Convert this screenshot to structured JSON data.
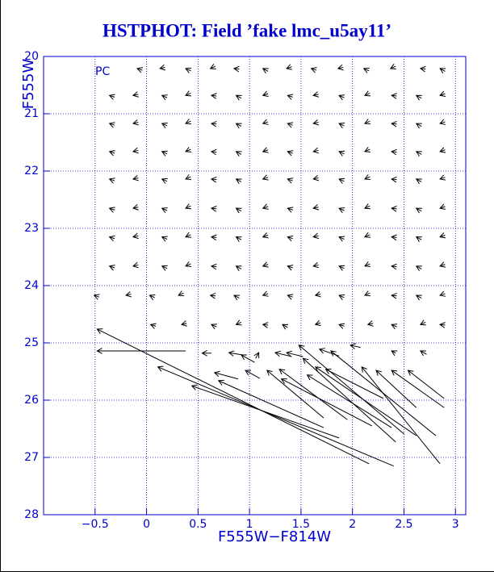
{
  "chart_data": {
    "type": "quiver",
    "title": "HSTPHOT: Field ’fake lmc_u5ay11’",
    "annotation": "PC",
    "x_label": "F555W−F814W",
    "y_label": "F555W",
    "xlim": [
      -1,
      3.1
    ],
    "ylim": [
      28,
      20
    ],
    "xticks": [
      {
        "value": -0.5,
        "label": "−0.5"
      },
      0,
      0.5,
      1,
      1.5,
      2,
      2.5,
      3
    ],
    "yticks": [
      20,
      21,
      22,
      23,
      24,
      25,
      26,
      27,
      28
    ],
    "grid": true,
    "color": "#000000",
    "axis_color": "#0000cc",
    "x": [
      2.16,
      0.38,
      2.4,
      1.87,
      0.63,
      0.89,
      1.72,
      0.93,
      1.05,
      1.1,
      1.06,
      1.72,
      1.41,
      1.95,
      2.19,
      1.52,
      2.5,
      2.42,
      2.38,
      2.62,
      1.87,
      2.81,
      2.85,
      2.62,
      2.89,
      2.89,
      2.72,
      2.42,
      2.08,
      2.3,
      -0.04,
      0.18,
      0.43,
      0.67,
      0.9,
      1.18,
      1.41,
      1.65,
      1.91,
      2.16,
      2.42,
      2.71,
      2.9,
      -0.31,
      -0.08,
      0.2,
      0.43,
      0.68,
      0.92,
      1.18,
      1.42,
      1.67,
      1.92,
      2.17,
      2.43,
      2.67,
      2.9,
      -0.31,
      -0.08,
      0.2,
      0.43,
      0.68,
      0.92,
      1.18,
      1.42,
      1.67,
      1.92,
      2.17,
      2.43,
      2.67,
      2.9,
      -0.31,
      -0.08,
      0.2,
      0.43,
      0.68,
      0.92,
      1.18,
      1.42,
      1.67,
      1.92,
      2.17,
      2.43,
      2.67,
      2.9,
      -0.31,
      -0.08,
      0.2,
      0.43,
      0.68,
      0.92,
      1.18,
      1.42,
      1.67,
      1.92,
      2.17,
      2.43,
      2.67,
      2.9,
      -0.31,
      -0.08,
      0.2,
      0.43,
      0.68,
      0.92,
      1.18,
      1.42,
      1.67,
      1.92,
      2.17,
      2.43,
      2.67,
      2.9,
      -0.31,
      -0.08,
      0.2,
      0.43,
      0.68,
      0.92,
      1.18,
      1.42,
      1.67,
      1.92,
      2.17,
      2.43,
      2.67,
      2.9,
      -0.31,
      -0.08,
      0.2,
      0.43,
      0.68,
      0.92,
      1.18,
      1.42,
      1.67,
      1.92,
      2.17,
      2.43,
      2.67,
      2.9,
      -0.46,
      -0.15,
      0.08,
      0.36,
      0.67,
      0.9,
      1.18,
      1.42,
      1.69,
      1.92,
      2.17,
      2.43,
      2.67,
      2.9,
      0.09,
      0.39,
      0.68,
      0.92,
      1.18,
      1.37,
      1.69,
      1.92,
      2.2,
      2.43,
      2.71,
      2.9
    ],
    "y": [
      27.11,
      25.14,
      27.15,
      26.66,
      25.18,
      25.63,
      26.48,
      25.21,
      25.34,
      25.62,
      25.27,
      26.31,
      25.24,
      26.34,
      26.45,
      25.24,
      26.59,
      26.73,
      26.48,
      26.62,
      25.23,
      26.62,
      27.11,
      26.13,
      26.13,
      25.97,
      25.2,
      25.18,
      25.08,
      25.97,
      20.24,
      20.19,
      20.25,
      20.17,
      20.22,
      20.26,
      20.18,
      20.24,
      20.19,
      20.25,
      20.17,
      20.22,
      20.26,
      20.71,
      20.66,
      20.72,
      20.64,
      20.69,
      20.73,
      20.65,
      20.71,
      20.66,
      20.72,
      20.64,
      20.69,
      20.73,
      20.65,
      21.2,
      21.15,
      21.21,
      21.13,
      21.18,
      21.22,
      21.14,
      21.2,
      21.15,
      21.21,
      21.13,
      21.18,
      21.22,
      21.14,
      21.69,
      21.64,
      21.7,
      21.62,
      21.67,
      21.71,
      21.63,
      21.69,
      21.64,
      21.7,
      21.62,
      21.67,
      21.71,
      21.63,
      22.17,
      22.12,
      22.18,
      22.1,
      22.15,
      22.19,
      22.11,
      22.17,
      22.12,
      22.18,
      22.1,
      22.15,
      22.19,
      22.11,
      22.68,
      22.63,
      22.69,
      22.61,
      22.66,
      22.7,
      22.62,
      22.68,
      22.63,
      22.69,
      22.61,
      22.66,
      22.7,
      22.62,
      23.18,
      23.13,
      23.19,
      23.11,
      23.16,
      23.2,
      23.12,
      23.18,
      23.13,
      23.19,
      23.11,
      23.16,
      23.2,
      23.12,
      23.69,
      23.64,
      23.7,
      23.62,
      23.67,
      23.71,
      23.63,
      23.69,
      23.64,
      23.7,
      23.62,
      23.67,
      23.71,
      23.63,
      24.2,
      24.15,
      24.21,
      24.13,
      24.18,
      24.22,
      24.14,
      24.2,
      24.15,
      24.21,
      24.13,
      24.18,
      24.22,
      24.14,
      24.71,
      24.66,
      24.72,
      24.64,
      24.69,
      24.73,
      24.65,
      24.71,
      24.66,
      24.72,
      24.64,
      24.69
    ],
    "x_end": [
      -0.48,
      -0.48,
      0.11,
      0.44,
      0.54,
      0.66,
      0.7,
      0.8,
      0.92,
      0.96,
      1.09,
      1.17,
      1.25,
      1.29,
      1.31,
      1.36,
      1.48,
      1.52,
      1.56,
      1.64,
      1.68,
      1.79,
      2.09,
      2.23,
      2.38,
      2.54,
      2.66,
      2.38,
      1.98,
      1.74,
      -0.09,
      0.13,
      0.38,
      0.62,
      0.85,
      1.13,
      1.36,
      1.6,
      1.86,
      2.11,
      2.37,
      2.66,
      2.85,
      -0.36,
      -0.13,
      0.15,
      0.38,
      0.63,
      0.87,
      1.13,
      1.37,
      1.62,
      1.87,
      2.12,
      2.38,
      2.62,
      2.85,
      -0.36,
      -0.13,
      0.15,
      0.38,
      0.63,
      0.87,
      1.13,
      1.37,
      1.62,
      1.87,
      2.12,
      2.38,
      2.62,
      2.85,
      -0.36,
      -0.13,
      0.15,
      0.38,
      0.63,
      0.87,
      1.13,
      1.37,
      1.62,
      1.87,
      2.12,
      2.38,
      2.62,
      2.85,
      -0.36,
      -0.13,
      0.15,
      0.38,
      0.63,
      0.87,
      1.13,
      1.37,
      1.62,
      1.87,
      2.12,
      2.38,
      2.62,
      2.85,
      -0.36,
      -0.13,
      0.15,
      0.38,
      0.63,
      0.87,
      1.13,
      1.37,
      1.62,
      1.87,
      2.12,
      2.38,
      2.62,
      2.85,
      -0.36,
      -0.13,
      0.15,
      0.38,
      0.63,
      0.87,
      1.13,
      1.37,
      1.62,
      1.87,
      2.12,
      2.38,
      2.62,
      2.85,
      -0.36,
      -0.13,
      0.15,
      0.38,
      0.63,
      0.87,
      1.13,
      1.37,
      1.62,
      1.87,
      2.12,
      2.38,
      2.62,
      2.85,
      -0.51,
      -0.2,
      0.03,
      0.31,
      0.62,
      0.85,
      1.13,
      1.37,
      1.64,
      1.87,
      2.12,
      2.38,
      2.62,
      2.85,
      0.04,
      0.34,
      0.63,
      0.87,
      1.13,
      1.32,
      1.64,
      1.87,
      2.15,
      2.38,
      2.66,
      2.85
    ],
    "y_end": [
      24.76,
      25.14,
      25.42,
      25.75,
      25.18,
      25.52,
      25.66,
      25.17,
      25.21,
      25.48,
      25.17,
      25.48,
      25.17,
      25.46,
      25.63,
      25.17,
      25.04,
      25.27,
      25.56,
      25.42,
      25.11,
      25.14,
      25.42,
      25.48,
      25.48,
      25.48,
      25.14,
      25.14,
      25.04,
      25.46,
      20.21,
      20.21,
      20.21,
      20.21,
      20.21,
      20.21,
      20.21,
      20.21,
      20.21,
      20.21,
      20.21,
      20.21,
      20.21,
      20.68,
      20.68,
      20.68,
      20.68,
      20.68,
      20.68,
      20.68,
      20.68,
      20.68,
      20.68,
      20.68,
      20.68,
      20.68,
      20.68,
      21.17,
      21.17,
      21.17,
      21.17,
      21.17,
      21.17,
      21.17,
      21.17,
      21.17,
      21.17,
      21.17,
      21.17,
      21.17,
      21.17,
      21.66,
      21.66,
      21.66,
      21.66,
      21.66,
      21.66,
      21.66,
      21.66,
      21.66,
      21.66,
      21.66,
      21.66,
      21.66,
      21.66,
      22.14,
      22.14,
      22.14,
      22.14,
      22.14,
      22.14,
      22.14,
      22.14,
      22.14,
      22.14,
      22.14,
      22.14,
      22.14,
      22.14,
      22.65,
      22.65,
      22.65,
      22.65,
      22.65,
      22.65,
      22.65,
      22.65,
      22.65,
      22.65,
      22.65,
      22.65,
      22.65,
      22.65,
      23.15,
      23.15,
      23.15,
      23.15,
      23.15,
      23.15,
      23.15,
      23.15,
      23.15,
      23.15,
      23.15,
      23.15,
      23.15,
      23.15,
      23.66,
      23.66,
      23.66,
      23.66,
      23.66,
      23.66,
      23.66,
      23.66,
      23.66,
      23.66,
      23.66,
      23.66,
      23.66,
      23.66,
      24.17,
      24.17,
      24.17,
      24.17,
      24.17,
      24.17,
      24.17,
      24.17,
      24.17,
      24.17,
      24.17,
      24.17,
      24.17,
      24.17,
      24.68,
      24.68,
      24.68,
      24.68,
      24.68,
      24.68,
      24.68,
      24.68,
      24.68,
      24.68,
      24.68,
      24.68
    ]
  }
}
